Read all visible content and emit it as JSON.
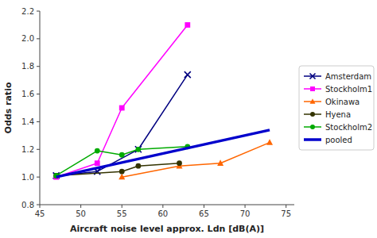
{
  "chart_data": {
    "type": "line",
    "xlabel": "Aircraft noise level approx. Ldn [dB(A)]",
    "ylabel": "Odds ratio",
    "xlim": [
      45,
      76
    ],
    "ylim": [
      0.8,
      2.2
    ],
    "xticks": [
      45,
      50,
      55,
      60,
      65,
      70,
      75
    ],
    "yticks": [
      0.8,
      {
        "value": 1.0,
        "label": "1.0"
      },
      1.2,
      1.4,
      1.6,
      1.8,
      {
        "value": 2.0,
        "label": "2.0"
      },
      2.2
    ],
    "grid": false,
    "legend": "right",
    "series": [
      {
        "name": "Amsterdam",
        "color": "#000080",
        "marker": "x",
        "x": [
          47,
          52,
          57,
          63
        ],
        "values": [
          1.01,
          1.04,
          1.2,
          1.74
        ]
      },
      {
        "name": "Stockholm1",
        "color": "#ff00ff",
        "marker": "square",
        "x": [
          47,
          52,
          55,
          63
        ],
        "values": [
          1.0,
          1.1,
          1.5,
          2.1
        ]
      },
      {
        "name": "Okinawa",
        "color": "#ff6600",
        "marker": "triangle",
        "x": [
          55,
          62,
          67,
          73
        ],
        "values": [
          1.0,
          1.08,
          1.1,
          1.25
        ]
      },
      {
        "name": "Hyena",
        "color": "#333300",
        "marker": "circle",
        "x": [
          47,
          55,
          57,
          62
        ],
        "values": [
          1.01,
          1.04,
          1.08,
          1.1
        ]
      },
      {
        "name": "Stockholm2",
        "color": "#00aa00",
        "marker": "circle",
        "x": [
          47,
          52,
          55,
          57,
          63
        ],
        "values": [
          1.01,
          1.19,
          1.16,
          1.2,
          1.22
        ]
      },
      {
        "name": "pooled",
        "color": "#0000cc",
        "marker": "none",
        "x": [
          47,
          73
        ],
        "values": [
          1.0,
          1.34
        ]
      }
    ]
  }
}
